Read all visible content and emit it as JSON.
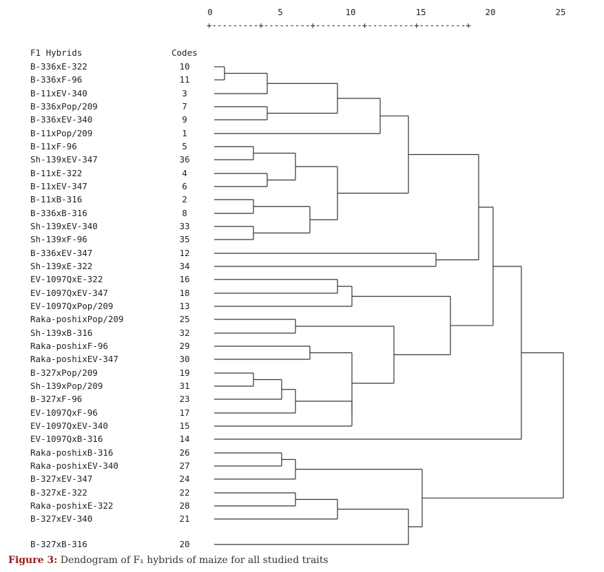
{
  "axis": {
    "ticks": [
      "0",
      "5",
      "10",
      "15",
      "20",
      "25"
    ],
    "line": "+---------+---------+---------+---------+---------+"
  },
  "header": {
    "hybrids": "F1 Hybrids",
    "codes": "Codes"
  },
  "leaves": [
    {
      "name": "B-336xE-322",
      "code": "10"
    },
    {
      "name": "B-336xF-96",
      "code": "11"
    },
    {
      "name": "B-11xEV-340",
      "code": "3"
    },
    {
      "name": "B-336xPop/209",
      "code": "7"
    },
    {
      "name": "B-336xEV-340",
      "code": "9"
    },
    {
      "name": "B-11xPop/209",
      "code": "1"
    },
    {
      "name": "B-11xF-96",
      "code": "5"
    },
    {
      "name": "Sh-139xEV-347",
      "code": "36"
    },
    {
      "name": "B-11xE-322",
      "code": "4"
    },
    {
      "name": "B-11xEV-347",
      "code": "6"
    },
    {
      "name": "B-11xB-316",
      "code": "2"
    },
    {
      "name": "B-336xB-316",
      "code": "8"
    },
    {
      "name": "Sh-139xEV-340",
      "code": "33"
    },
    {
      "name": "Sh-139xF-96",
      "code": "35"
    },
    {
      "name": "B-336xEV-347",
      "code": "12"
    },
    {
      "name": "Sh-139xE-322",
      "code": "34"
    },
    {
      "name": "EV-1097QxE-322",
      "code": "16"
    },
    {
      "name": "EV-1097QxEV-347",
      "code": "18"
    },
    {
      "name": "EV-1097QxPop/209",
      "code": "13"
    },
    {
      "name": "Raka-poshixPop/209",
      "code": "25"
    },
    {
      "name": "Sh-139xB-316",
      "code": "32"
    },
    {
      "name": "Raka-poshixF-96",
      "code": "29"
    },
    {
      "name": "Raka-poshixEV-347",
      "code": "30"
    },
    {
      "name": "B-327xPop/209",
      "code": "19"
    },
    {
      "name": "Sh-139xPop/209",
      "code": "31"
    },
    {
      "name": "B-327xF-96",
      "code": "23"
    },
    {
      "name": "EV-1097QxF-96",
      "code": "17"
    },
    {
      "name": "EV-1097QxEV-340",
      "code": "15"
    },
    {
      "name": "EV-1097QxB-316",
      "code": "14"
    },
    {
      "name": "Raka-poshixB-316",
      "code": "26"
    },
    {
      "name": "Raka-poshixEV-340",
      "code": "27"
    },
    {
      "name": "B-327xEV-347",
      "code": "24"
    },
    {
      "name": "B-327xE-322",
      "code": "22"
    },
    {
      "name": "Raka-poshixE-322",
      "code": "28"
    },
    {
      "name": "B-327xEV-340",
      "code": "21"
    },
    {
      "name": "B-327xB-316",
      "code": "20"
    }
  ],
  "caption": {
    "label": "Figure 3:",
    "text": " Dendogram of F₁ hybrids of maize for all studied traits"
  }
}
